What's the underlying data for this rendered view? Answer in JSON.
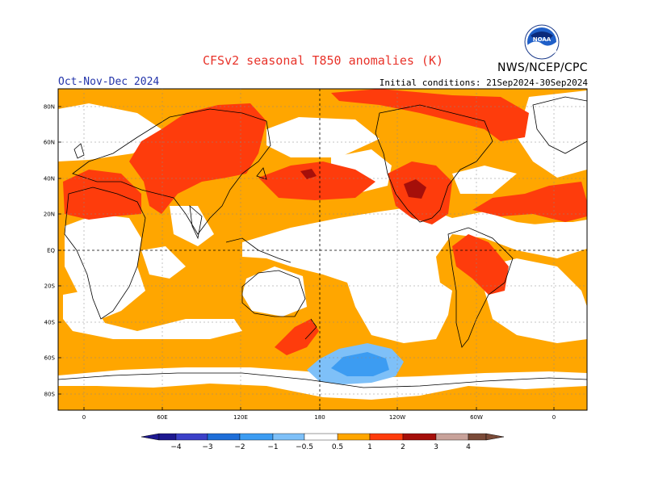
{
  "header": {
    "title": "CFSv2 seasonal T850 anomalies (K)",
    "season": "Oct-Nov-Dec 2024",
    "initial_conditions": "Initial conditions: 21Sep2024-30Sep2024",
    "agency": "NWS/NCEP/CPC",
    "logo_text": "NOAA"
  },
  "map": {
    "lat_labels": [
      "80N",
      "60N",
      "40N",
      "20N",
      "EQ",
      "20S",
      "40S",
      "60S",
      "80S"
    ],
    "lon_labels": [
      "0",
      "60E",
      "120E",
      "180",
      "120W",
      "60W",
      "0"
    ]
  },
  "colorbar": {
    "labels": [
      "−4",
      "−3",
      "−2",
      "−1",
      "−0.5",
      "0.5",
      "1",
      "2",
      "3",
      "4"
    ],
    "colors": {
      "below_-4": "#1d1890",
      "-4_-3": "#3b40c8",
      "-3_-2": "#1e6ed8",
      "-2_-1": "#3c9cf2",
      "-1_-0.5": "#7ec0f8",
      "0.5_1": "#ffa600",
      "1_2": "#fe3c0c",
      "2_3": "#a50f0a",
      "3_4": "#c8a29a",
      "above_4": "#7a4a38"
    }
  }
}
